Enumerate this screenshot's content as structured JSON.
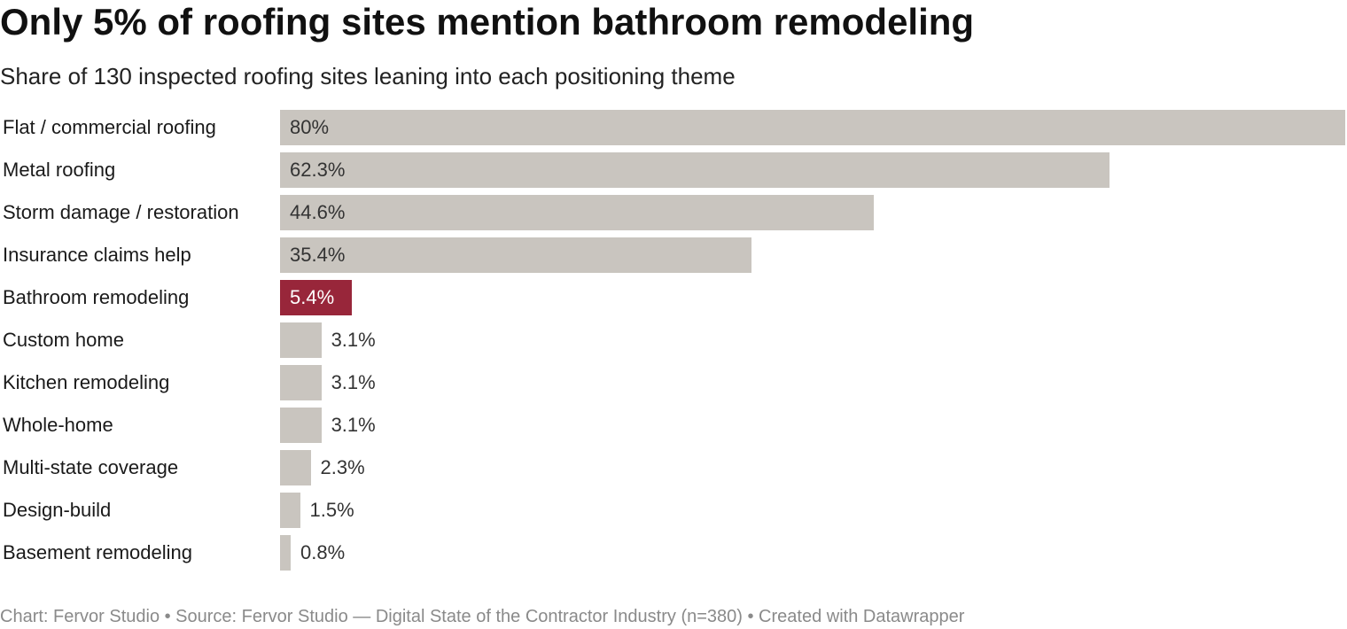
{
  "header": {
    "title": "Only 5% of roofing sites mention bathroom remodeling",
    "subtitle": "Share of 130 inspected roofing sites leaning into each positioning theme"
  },
  "chart_data": {
    "type": "bar",
    "orientation": "horizontal",
    "title": "Only 5% of roofing sites mention bathroom remodeling",
    "subtitle": "Share of 130 inspected roofing sites leaning into each positioning theme",
    "categories": [
      "Flat / commercial roofing",
      "Metal roofing",
      "Storm damage / restoration",
      "Insurance claims help",
      "Bathroom remodeling",
      "Custom home",
      "Kitchen remodeling",
      "Whole-home",
      "Multi-state coverage",
      "Design-build",
      "Basement remodeling"
    ],
    "values": [
      80,
      62.3,
      44.6,
      35.4,
      5.4,
      3.1,
      3.1,
      3.1,
      2.3,
      1.5,
      0.8
    ],
    "value_labels": [
      "80%",
      "62.3%",
      "44.6%",
      "35.4%",
      "5.4%",
      "3.1%",
      "3.1%",
      "3.1%",
      "2.3%",
      "1.5%",
      "0.8%"
    ],
    "highlight": "Bathroom remodeling",
    "xlim": [
      0,
      80
    ],
    "grid": false,
    "legend": "none",
    "colors": {
      "default": "#c9c5bf",
      "highlight": "#98263a"
    }
  },
  "footer": {
    "credit": "Chart: Fervor Studio • Source: Fervor Studio — Digital State of the Contractor Industry (n=380) • Created with Datawrapper"
  }
}
